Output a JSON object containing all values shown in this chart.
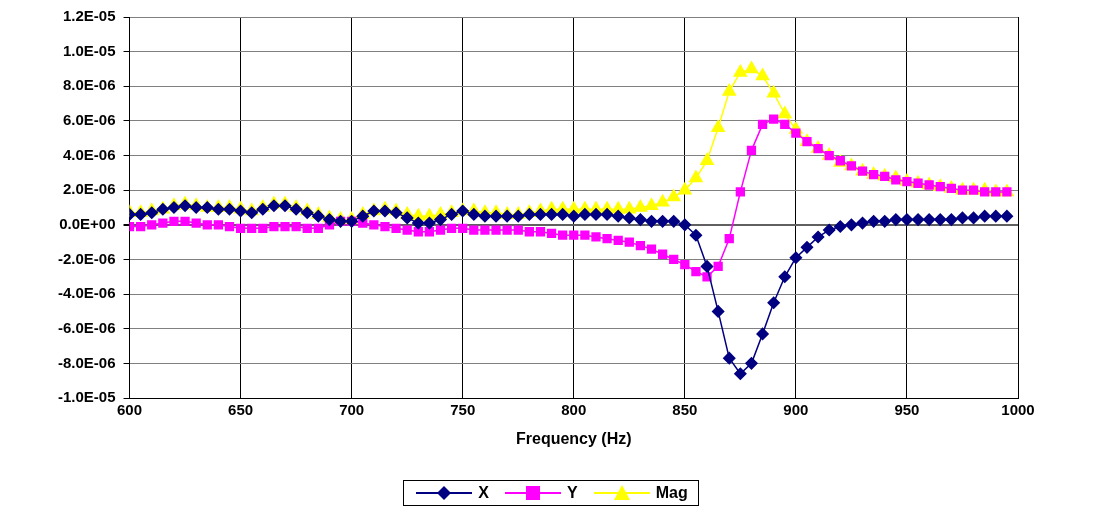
{
  "chart_data": {
    "type": "line",
    "xlabel": "Frequency (Hz)",
    "x": [
      600,
      605,
      610,
      615,
      620,
      625,
      630,
      635,
      640,
      645,
      650,
      655,
      660,
      665,
      670,
      675,
      680,
      685,
      690,
      695,
      700,
      705,
      710,
      715,
      720,
      725,
      730,
      735,
      740,
      745,
      750,
      755,
      760,
      765,
      770,
      775,
      780,
      785,
      790,
      795,
      800,
      805,
      810,
      815,
      820,
      825,
      830,
      835,
      840,
      845,
      850,
      855,
      860,
      865,
      870,
      875,
      880,
      885,
      890,
      895,
      900,
      905,
      910,
      915,
      920,
      925,
      930,
      935,
      940,
      945,
      950,
      955,
      960,
      965,
      970,
      975,
      980,
      985,
      990,
      995
    ],
    "xlim": [
      600,
      1000
    ],
    "xticks": [
      600,
      650,
      700,
      750,
      800,
      850,
      900,
      950,
      1000
    ],
    "ylim": [
      -1e-05,
      1.2e-05
    ],
    "yticks": [
      {
        "value": -1e-05,
        "label": "-1.0E-05"
      },
      {
        "value": -8e-06,
        "label": "-8.0E-06"
      },
      {
        "value": -6e-06,
        "label": "-6.0E-06"
      },
      {
        "value": -4e-06,
        "label": "-4.0E-06"
      },
      {
        "value": -2e-06,
        "label": "-2.0E-06"
      },
      {
        "value": 0,
        "label": "0.0E+00"
      },
      {
        "value": 2e-06,
        "label": "2.0E-06"
      },
      {
        "value": 4e-06,
        "label": "4.0E-06"
      },
      {
        "value": 6e-06,
        "label": "6.0E-06"
      },
      {
        "value": 8e-06,
        "label": "8.0E-06"
      },
      {
        "value": 1e-05,
        "label": "1.0E-05"
      },
      {
        "value": 1.2e-05,
        "label": "1.2E-05"
      }
    ],
    "grid": true,
    "legend": "bottom",
    "line_style": "solid",
    "series": [
      {
        "name": "X",
        "color": "#000080",
        "marker": "diamond",
        "values": [
          6e-07,
          6e-07,
          7e-07,
          9e-07,
          1e-06,
          1.1e-06,
          1e-06,
          1e-06,
          9e-07,
          9e-07,
          8e-07,
          7e-07,
          9e-07,
          1.1e-06,
          1.1e-06,
          9e-07,
          7e-07,
          5e-07,
          3e-07,
          2e-07,
          2e-07,
          5e-07,
          8e-07,
          8e-07,
          7e-07,
          4e-07,
          1e-07,
          1e-07,
          3e-07,
          6e-07,
          8e-07,
          6e-07,
          5e-07,
          5e-07,
          5e-07,
          5e-07,
          6e-07,
          6e-07,
          6e-07,
          6e-07,
          5e-07,
          6e-07,
          6e-07,
          6e-07,
          5e-07,
          4e-07,
          3e-07,
          2e-07,
          2e-07,
          2e-07,
          0,
          -6e-07,
          -2.4e-06,
          -5e-06,
          -7.7e-06,
          -8.6e-06,
          -8e-06,
          -6.3e-06,
          -4.5e-06,
          -3e-06,
          -1.9e-06,
          -1.3e-06,
          -7e-07,
          -3e-07,
          -1e-07,
          0,
          1e-07,
          2e-07,
          2e-07,
          3e-07,
          3e-07,
          3e-07,
          3e-07,
          3e-07,
          3e-07,
          4e-07,
          4e-07,
          5e-07,
          5e-07,
          5e-07
        ]
      },
      {
        "name": "Y",
        "color": "#ff00ff",
        "marker": "square",
        "values": [
          -1e-07,
          -1e-07,
          0,
          1e-07,
          2e-07,
          2e-07,
          1e-07,
          0,
          0,
          -1e-07,
          -2e-07,
          -2e-07,
          -2e-07,
          -1e-07,
          -1e-07,
          -1e-07,
          -2e-07,
          -2e-07,
          0,
          2e-07,
          2e-07,
          1e-07,
          0,
          -1e-07,
          -2e-07,
          -3e-07,
          -4e-07,
          -4e-07,
          -3e-07,
          -2e-07,
          -2e-07,
          -3e-07,
          -3e-07,
          -3e-07,
          -3e-07,
          -3e-07,
          -4e-07,
          -4e-07,
          -5e-07,
          -6e-07,
          -6e-07,
          -6e-07,
          -7e-07,
          -8e-07,
          -9e-07,
          -1e-06,
          -1.2e-06,
          -1.4e-06,
          -1.7e-06,
          -2e-06,
          -2.3e-06,
          -2.7e-06,
          -3e-06,
          -2.4e-06,
          -8e-07,
          1.9e-06,
          4.3e-06,
          5.8e-06,
          6.1e-06,
          5.8e-06,
          5.3e-06,
          4.8e-06,
          4.4e-06,
          4e-06,
          3.7e-06,
          3.4e-06,
          3.1e-06,
          2.9e-06,
          2.8e-06,
          2.6e-06,
          2.5e-06,
          2.4e-06,
          2.3e-06,
          2.2e-06,
          2.1e-06,
          2e-06,
          2e-06,
          1.9e-06,
          1.9e-06,
          1.9e-06
        ]
      },
      {
        "name": "Mag",
        "color": "#ffff00",
        "marker": "triangle",
        "values": [
          7e-07,
          7e-07,
          8e-07,
          9e-07,
          1.1e-06,
          1.2e-06,
          1.1e-06,
          1e-06,
          1e-06,
          1e-06,
          9e-07,
          8e-07,
          1e-06,
          1.2e-06,
          1.2e-06,
          1e-06,
          8e-07,
          6e-07,
          4e-07,
          3e-07,
          3e-07,
          6e-07,
          8e-07,
          9e-07,
          8e-07,
          6e-07,
          5e-07,
          5e-07,
          6e-07,
          7e-07,
          8e-07,
          8e-07,
          7e-07,
          7e-07,
          6e-07,
          6e-07,
          7e-07,
          8e-07,
          9e-07,
          9e-07,
          9e-07,
          9e-07,
          9e-07,
          9e-07,
          9e-07,
          9e-07,
          1e-06,
          1.1e-06,
          1.3e-06,
          1.6e-06,
          2e-06,
          2.7e-06,
          3.7e-06,
          5.6e-06,
          7.7e-06,
          8.8e-06,
          9e-06,
          8.6e-06,
          7.6e-06,
          6.4e-06,
          5.5e-06,
          4.8e-06,
          4.4e-06,
          4e-06,
          3.6e-06,
          3.4e-06,
          3.1e-06,
          2.9e-06,
          2.8e-06,
          2.7e-06,
          2.5e-06,
          2.4e-06,
          2.3e-06,
          2.2e-06,
          2.1e-06,
          2e-06,
          2e-06,
          2e-06,
          1.9e-06,
          1.9e-06
        ]
      }
    ]
  }
}
